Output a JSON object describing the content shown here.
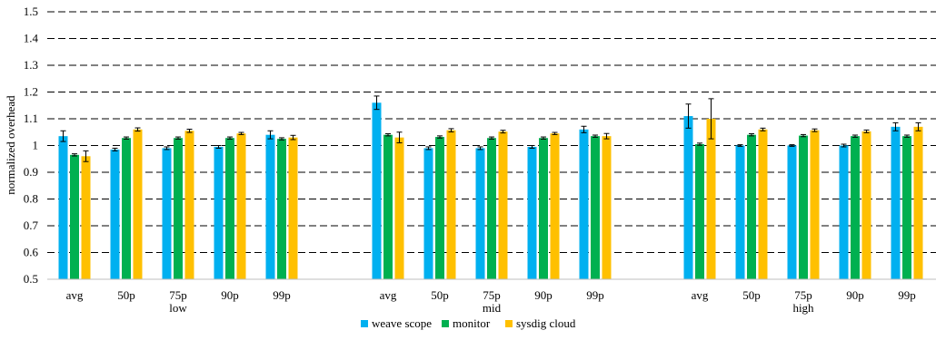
{
  "chart_data": {
    "type": "bar",
    "ylabel": "normalized overhead",
    "ylim": [
      0.5,
      1.5
    ],
    "yticks": [
      "0.5",
      "0.6",
      "0.7",
      "0.8",
      "0.9",
      "1",
      "1.1",
      "1.2",
      "1.3",
      "1.4",
      "1.5"
    ],
    "grid": "dashed horizontal",
    "legend_position": "bottom",
    "groups": [
      {
        "label": "low",
        "categories": [
          "avg",
          "50p",
          "75p",
          "90p",
          "99p"
        ]
      },
      {
        "label": "mid",
        "categories": [
          "avg",
          "50p",
          "75p",
          "90p",
          "99p"
        ]
      },
      {
        "label": "high",
        "categories": [
          "avg",
          "50p",
          "75p",
          "90p",
          "99p"
        ]
      }
    ],
    "series": [
      {
        "name": "weave scope",
        "color": "#00b0f0",
        "values": [
          1.035,
          0.985,
          0.99,
          0.995,
          1.04,
          1.16,
          0.99,
          0.99,
          0.995,
          1.06,
          1.11,
          1.0,
          1.0,
          1.0,
          1.07
        ],
        "errors": [
          0.02,
          0.005,
          0.005,
          0.005,
          0.015,
          0.025,
          0.005,
          0.005,
          0.005,
          0.012,
          0.045,
          0.003,
          0.003,
          0.005,
          0.015
        ]
      },
      {
        "name": "monitor",
        "color": "#00b050",
        "values": [
          0.965,
          1.028,
          1.028,
          1.028,
          1.025,
          1.04,
          1.032,
          1.028,
          1.028,
          1.035,
          1.005,
          1.04,
          1.037,
          1.035,
          1.035
        ]
      },
      {
        "name": "sysdig cloud",
        "color": "#ffc000",
        "values": [
          0.96,
          1.06,
          1.055,
          1.045,
          1.03,
          1.03,
          1.057,
          1.052,
          1.045,
          1.035,
          1.1,
          1.06,
          1.057,
          1.053,
          1.07
        ],
        "errors": [
          0.02,
          0.006,
          0.006,
          0.004,
          0.008,
          0.02,
          0.006,
          0.005,
          0.004,
          0.01,
          0.075,
          0.005,
          0.005,
          0.005,
          0.015
        ]
      }
    ]
  },
  "legend": [
    "weave scope",
    "monitor",
    "sysdig cloud"
  ]
}
